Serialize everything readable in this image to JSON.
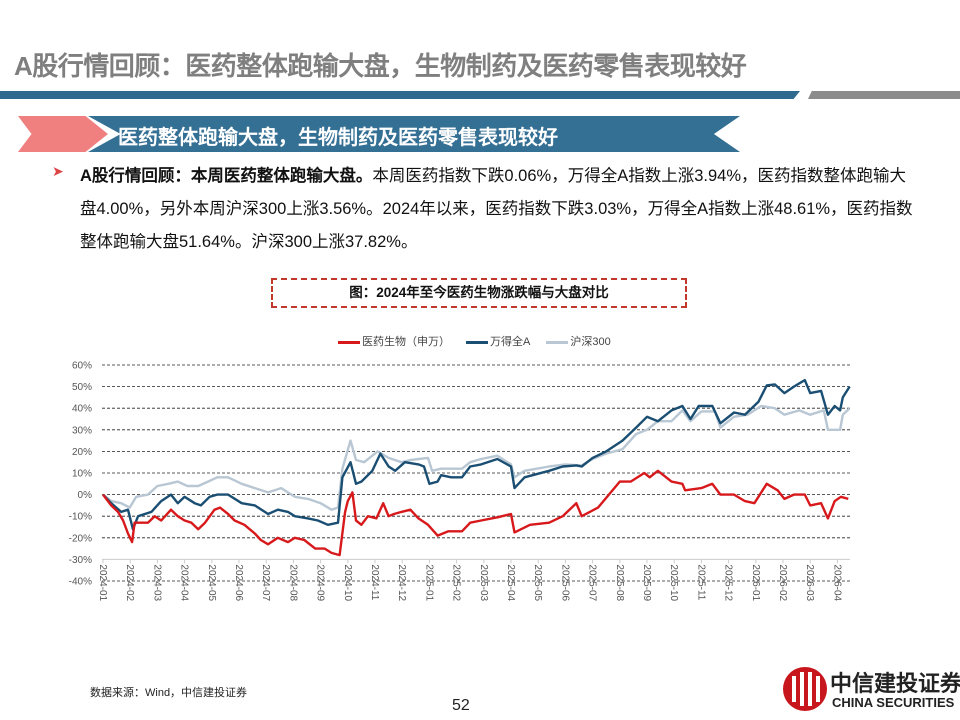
{
  "header": {
    "title": "A股行情回顾：医药整体跑输大盘，生物制药及医药零售表现较好",
    "banner": "医药整体跑输大盘，生物制药及医药零售表现较好"
  },
  "body": {
    "bullet_bold": "A股行情回顾：本周医药整体跑输大盘。",
    "bullet_text": "本周医药指数下跌0.06%，万得全A指数上涨3.94%，医药指数整体跑输大盘4.00%，另外本周沪深300上涨3.56%。2024年以来，医药指数下跌3.03%，万得全A指数上涨48.61%，医药指数整体跑输大盘51.64%。沪深300上涨37.82%。"
  },
  "footer": {
    "source": "数据来源：Wind，中信建投证券",
    "page_number": "52",
    "logo_cn": "中信建投证券",
    "logo_en": "CHINA SECURITIES"
  },
  "chart_data": {
    "type": "line",
    "title": "图：2024年至今医药生物涨跌幅与大盘对比",
    "xlabel": "",
    "ylabel": "",
    "x_unit": "months since 2024-01",
    "categories": [
      "2024-01",
      "2024-02",
      "2024-03",
      "2024-04",
      "2024-05",
      "2024-06",
      "2024-07",
      "2024-08",
      "2024-09",
      "2024-10",
      "2024-11",
      "2024-12",
      "2025-01",
      "2025-02",
      "2025-03",
      "2025-04",
      "2025-05",
      "2025-06",
      "2025-07",
      "2025-08",
      "2025-09",
      "2025-10",
      "2025-11",
      "2025-12",
      "2026-01",
      "2026-02",
      "2026-03",
      "2026-04"
    ],
    "yticks": [
      "60%",
      "50%",
      "40%",
      "30%",
      "20%",
      "10%",
      "0%",
      "-10%",
      "-20%",
      "-30%",
      "-40%"
    ],
    "ylim": [
      -40,
      60
    ],
    "grid": true,
    "legend_position": "top",
    "series": [
      {
        "name": "医药生物（申万）",
        "color": "#d7191c",
        "x": [
          0,
          0.3,
          0.55,
          0.74,
          0.92,
          1.07,
          1.16,
          1.65,
          1.9,
          2.14,
          2.5,
          2.75,
          3.0,
          3.25,
          3.5,
          3.75,
          4.1,
          4.3,
          4.6,
          4.84,
          5.2,
          5.58,
          5.8,
          6.07,
          6.43,
          6.8,
          7.05,
          7.4,
          7.8,
          8.15,
          8.4,
          8.7,
          8.9,
          9.0,
          9.17,
          9.3,
          9.5,
          9.74,
          10.05,
          10.3,
          10.5,
          10.7,
          10.97,
          11.3,
          11.6,
          11.95,
          12.3,
          12.7,
          13.2,
          13.5,
          13.9,
          14.5,
          15.0,
          15.13,
          15.7,
          16.4,
          16.9,
          17.4,
          17.6,
          18.2,
          18.6,
          19.0,
          19.4,
          19.9,
          20.1,
          20.4,
          20.9,
          21.3,
          21.4,
          22.0,
          22.4,
          22.7,
          23.2,
          23.6,
          23.95,
          24.4,
          24.8,
          25.05,
          25.4,
          25.8,
          26.0,
          26.4,
          26.65,
          26.9,
          27.13,
          27.4
        ],
        "y": [
          0,
          -5,
          -8,
          -12,
          -18,
          -22,
          -13,
          -13,
          -10,
          -12,
          -7,
          -10,
          -12,
          -13,
          -16,
          -13,
          -7,
          -6,
          -9,
          -12,
          -14,
          -18,
          -21,
          -23,
          -20,
          -22,
          -20,
          -21,
          -25,
          -25,
          -27,
          -28,
          -8,
          -3,
          1,
          -12,
          -14,
          -10,
          -11,
          -4,
          -10,
          -9,
          -8,
          -7,
          -11,
          -14,
          -19,
          -17,
          -17,
          -13,
          -12,
          -10.5,
          -9,
          -17.5,
          -14,
          -13,
          -10,
          -4,
          -10,
          -6,
          0,
          6,
          6,
          10,
          8,
          11,
          6,
          5,
          2,
          3,
          5,
          0,
          0,
          -3,
          -4,
          5,
          2,
          -2,
          0,
          0,
          -5,
          -4,
          -11,
          -3,
          -1,
          -2
        ]
      },
      {
        "name": "万得全A",
        "color": "#1a4e72",
        "x": [
          0,
          0.3,
          0.67,
          0.92,
          1.1,
          1.29,
          1.78,
          2.14,
          2.5,
          2.75,
          3.0,
          3.37,
          3.6,
          3.92,
          4.2,
          4.6,
          5.1,
          5.58,
          6.07,
          6.43,
          6.8,
          7.05,
          7.54,
          7.9,
          8.27,
          8.64,
          8.8,
          9.1,
          9.3,
          9.5,
          9.9,
          10.2,
          10.5,
          10.74,
          11.1,
          11.6,
          11.8,
          12.0,
          12.3,
          12.43,
          12.8,
          13.2,
          13.5,
          13.9,
          14.5,
          15.0,
          15.13,
          15.5,
          16.4,
          16.9,
          17.4,
          17.6,
          18.0,
          18.5,
          19.1,
          19.6,
          20.0,
          20.4,
          20.9,
          21.3,
          21.6,
          21.9,
          22.4,
          22.7,
          23.2,
          23.6,
          24.1,
          24.4,
          24.7,
          25.05,
          25.4,
          25.8,
          26.0,
          26.4,
          26.65,
          26.9,
          27.1,
          27.2,
          27.45
        ],
        "y": [
          0,
          -4,
          -8,
          -7,
          -16,
          -10,
          -8,
          -3,
          0,
          -4,
          -1,
          -4,
          -5,
          -1,
          0,
          0,
          -4,
          -5,
          -9,
          -7,
          -8,
          -10,
          -11,
          -12,
          -14,
          -13,
          8,
          15,
          5,
          6,
          11,
          19,
          13,
          11,
          15,
          14,
          13,
          5,
          6,
          9,
          8,
          8,
          13,
          14,
          16.5,
          13,
          3,
          8,
          11,
          13,
          13.5,
          13,
          17,
          20,
          25,
          31,
          36,
          34,
          39,
          41,
          35,
          41,
          41,
          33,
          38,
          37,
          43,
          50.5,
          51,
          47,
          50,
          53,
          47,
          48,
          37,
          41,
          39,
          45,
          50
        ]
      },
      {
        "name": "沪深300",
        "color": "#b8c7d3",
        "x": [
          0,
          0.3,
          0.67,
          0.98,
          1.22,
          1.65,
          2.0,
          2.4,
          2.75,
          3.1,
          3.5,
          3.86,
          4.2,
          4.6,
          5.1,
          5.58,
          6.07,
          6.55,
          7.05,
          7.54,
          8.0,
          8.4,
          8.64,
          8.8,
          9.1,
          9.3,
          9.6,
          10.1,
          10.5,
          10.97,
          11.3,
          11.95,
          12.1,
          12.43,
          13.2,
          13.5,
          13.9,
          14.5,
          15.0,
          15.13,
          15.5,
          16.4,
          17.0,
          17.6,
          18.0,
          18.5,
          19.1,
          19.6,
          20.0,
          20.4,
          20.9,
          21.3,
          21.6,
          22.0,
          22.5,
          22.7,
          23.2,
          23.7,
          24.2,
          24.7,
          25.05,
          25.6,
          26.0,
          26.5,
          26.65,
          27.1,
          27.2,
          27.45
        ],
        "y": [
          0,
          -3,
          -4,
          -6,
          -1,
          0,
          4,
          5,
          6,
          4,
          4,
          6,
          8,
          8,
          5,
          3,
          1,
          3,
          -1,
          -2,
          -4,
          -7,
          -6,
          12,
          25,
          16,
          15,
          20,
          17,
          15,
          16,
          17,
          11,
          12,
          12,
          15,
          16.5,
          18,
          14,
          8,
          11,
          13,
          14,
          13.5,
          16.5,
          19,
          21,
          28,
          30,
          34,
          34,
          39,
          34,
          38.5,
          38.5,
          31,
          36,
          37,
          41,
          40,
          37,
          39,
          37,
          39,
          30,
          30,
          37,
          40
        ]
      }
    ]
  }
}
